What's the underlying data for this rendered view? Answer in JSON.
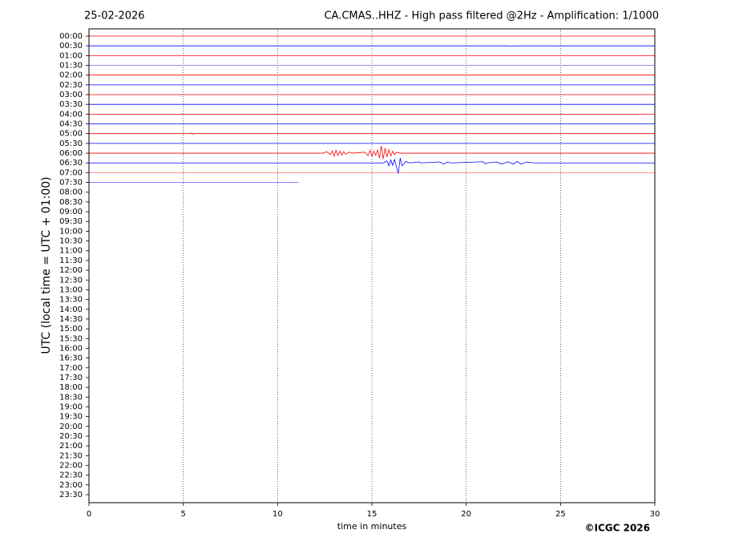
{
  "chart_data": {
    "type": "seismogram",
    "date": "25-02-2026",
    "title": "CA.CMAS..HHZ - High pass filtered @2Hz - Amplification: 1/1000",
    "xlabel": "time in minutes",
    "ylabel": "UTC (local time = UTC + 01:00)",
    "copyright": "©ICGC 2026",
    "xlim": [
      0,
      30
    ],
    "xticks": [
      0,
      5,
      10,
      15,
      20,
      25,
      30
    ],
    "grid": true,
    "categories": [
      "00:00",
      "00:30",
      "01:00",
      "01:30",
      "02:00",
      "02:30",
      "03:00",
      "03:30",
      "04:00",
      "04:30",
      "05:00",
      "05:30",
      "06:00",
      "06:30",
      "07:00",
      "07:30",
      "08:00",
      "08:30",
      "09:00",
      "09:30",
      "10:00",
      "10:30",
      "11:00",
      "11:30",
      "12:00",
      "12:30",
      "13:00",
      "13:30",
      "14:00",
      "14:30",
      "15:00",
      "15:30",
      "16:00",
      "16:30",
      "17:00",
      "17:30",
      "18:00",
      "18:30",
      "19:00",
      "19:30",
      "20:00",
      "20:30",
      "21:00",
      "21:30",
      "22:00",
      "22:30",
      "23:00",
      "23:30"
    ],
    "traces": [
      {
        "color": "#ff0000",
        "x": [
          0,
          30
        ],
        "values": [
          0,
          0
        ]
      },
      {
        "color": "#0000ff",
        "x": [
          0,
          22.3,
          22.4,
          22.5,
          30
        ],
        "values": [
          0,
          0,
          -0.05,
          0,
          0
        ]
      },
      {
        "color": "#ff0000",
        "x": [
          0,
          30
        ],
        "values": [
          0,
          0
        ]
      },
      {
        "color": "#6f6fff",
        "x": [
          0,
          30
        ],
        "values": [
          0,
          0
        ]
      },
      {
        "color": "#ff0000",
        "x": [
          0,
          30
        ],
        "values": [
          0,
          0
        ]
      },
      {
        "color": "#0000ff",
        "x": [
          0,
          30
        ],
        "values": [
          0,
          0
        ]
      },
      {
        "color": "#ff0000",
        "x": [
          0,
          30
        ],
        "values": [
          0,
          0
        ]
      },
      {
        "color": "#0000ff",
        "x": [
          0,
          30
        ],
        "values": [
          0,
          0
        ]
      },
      {
        "color": "#ff0000",
        "x": [
          0,
          30
        ],
        "values": [
          0,
          0
        ]
      },
      {
        "color": "#0000ff",
        "x": [
          0,
          30
        ],
        "values": [
          0,
          0
        ]
      },
      {
        "color": "#ff0000",
        "x": [
          0,
          5.4,
          5.45,
          5.5,
          5.55,
          30
        ],
        "values": [
          0,
          0,
          0.08,
          -0.08,
          0,
          0
        ]
      },
      {
        "color": "#0000ff",
        "x": [
          0,
          30
        ],
        "values": [
          0,
          0
        ]
      },
      {
        "color": "#ff0000",
        "x": [
          0,
          12.4,
          12.6,
          12.8,
          12.9,
          13.0,
          13.1,
          13.2,
          13.3,
          13.4,
          13.5,
          13.6,
          13.8,
          14.0,
          14.6,
          14.8,
          14.9,
          15.0,
          15.1,
          15.2,
          15.3,
          15.4,
          15.5,
          15.6,
          15.7,
          15.8,
          15.9,
          16.0,
          16.1,
          16.2,
          16.3,
          16.5,
          30
        ],
        "values": [
          0,
          0,
          0.15,
          -0.15,
          0.25,
          -0.3,
          0.3,
          -0.25,
          0.2,
          -0.2,
          0.15,
          -0.1,
          0.1,
          0,
          0.1,
          -0.25,
          0.3,
          -0.3,
          0.2,
          -0.2,
          0.3,
          -0.5,
          0.75,
          -0.6,
          0.5,
          -0.4,
          0.35,
          -0.3,
          0.2,
          -0.15,
          0.1,
          0,
          0
        ]
      },
      {
        "color": "#0000ff",
        "x": [
          0,
          15.6,
          15.8,
          15.9,
          16.0,
          16.1,
          16.2,
          16.3,
          16.4,
          16.5,
          16.6,
          16.8,
          17.0,
          17.5,
          17.6,
          18.6,
          18.8,
          19.0,
          19.2,
          20.9,
          21.0,
          21.1,
          21.6,
          21.9,
          22.2,
          22.5,
          22.7,
          22.9,
          23.2,
          23.6,
          30
        ],
        "values": [
          0,
          0,
          0.2,
          -0.3,
          0.3,
          -0.25,
          0.35,
          -0.4,
          -1.1,
          0.5,
          -0.3,
          0.15,
          0,
          0.1,
          0,
          0.1,
          -0.12,
          0.1,
          0,
          0.12,
          -0.1,
          0,
          0.1,
          -0.12,
          0.12,
          -0.12,
          0.15,
          -0.12,
          0.1,
          0,
          0
        ]
      },
      {
        "color": "#ff6f6f",
        "x": [
          0,
          30
        ],
        "values": [
          0,
          0
        ]
      },
      {
        "color": "#6f6fff",
        "x": [
          0,
          11.1
        ],
        "values": [
          0,
          0
        ]
      }
    ]
  }
}
